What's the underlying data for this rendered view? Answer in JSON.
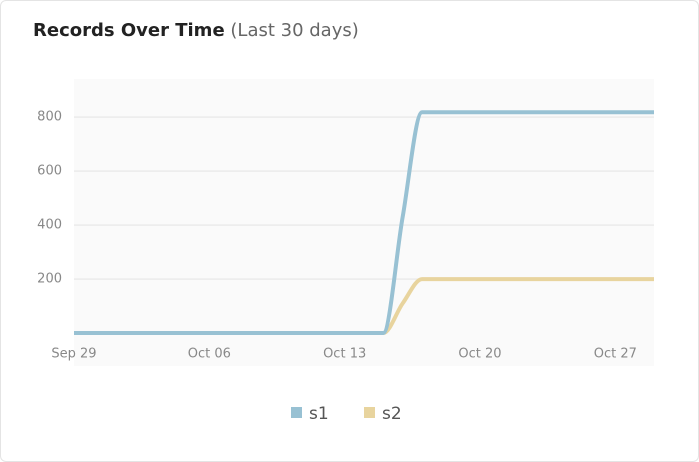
{
  "chart_data": {
    "type": "line",
    "title": "Records Over Time",
    "subtitle": "(Last 30 days)",
    "categories": [
      "Sep 29",
      null,
      null,
      null,
      null,
      null,
      null,
      "Oct 06",
      null,
      null,
      null,
      null,
      null,
      null,
      "Oct 13",
      null,
      null,
      null,
      null,
      null,
      null,
      "Oct 20",
      null,
      null,
      null,
      null,
      null,
      null,
      "Oct 27",
      null,
      null
    ],
    "series": [
      {
        "name": "s1",
        "color": "#98c1d3",
        "values": [
          0,
          0,
          0,
          0,
          0,
          0,
          0,
          0,
          0,
          0,
          0,
          0,
          0,
          0,
          0,
          0,
          0,
          430,
          818,
          818,
          818,
          818,
          818,
          818,
          818,
          818,
          818,
          818,
          818,
          818,
          818
        ]
      },
      {
        "name": "s2",
        "color": "#e8d49e",
        "values": [
          0,
          0,
          0,
          0,
          0,
          0,
          0,
          0,
          0,
          0,
          0,
          0,
          0,
          0,
          0,
          0,
          0,
          110,
          200,
          200,
          200,
          200,
          200,
          200,
          200,
          200,
          200,
          200,
          200,
          200,
          200
        ]
      }
    ],
    "ylim": [
      -122,
      941
    ],
    "yticks": [
      200,
      400,
      600,
      800
    ],
    "grid": true,
    "legend": "bottom"
  }
}
